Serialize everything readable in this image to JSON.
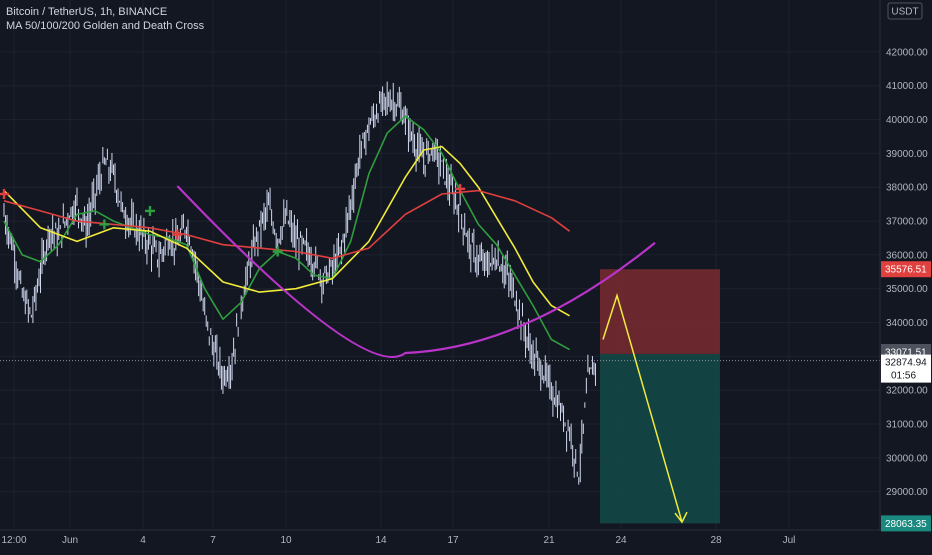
{
  "header": {
    "symbol_line": "Bitcoin / TetherUS, 1h, BINANCE",
    "indicator_line": "MA 50/100/200 Golden and Death Cross"
  },
  "price_axis": {
    "currency": "USDT",
    "ticks": [
      "42000.00",
      "41000.00",
      "40000.00",
      "39000.00",
      "38000.00",
      "37000.00",
      "36000.00",
      "35000.00",
      "34000.00",
      "33000.00",
      "32000.00",
      "31000.00",
      "30000.00",
      "29000.00"
    ]
  },
  "time_axis": {
    "ticks": [
      "12:00",
      "Jun",
      "4",
      "7",
      "10",
      "14",
      "17",
      "21",
      "24",
      "28",
      "Jul"
    ]
  },
  "badges": {
    "stop_price": "35576.51",
    "entry_price": "33071.51",
    "last_price": "32874.94",
    "countdown": "01:56",
    "target_price": "28063.35"
  },
  "colors": {
    "background": "#131722",
    "candles": "#d0d8ee",
    "ma_fast": "#2e9e3e",
    "ma_mid": "#f0ea3a",
    "ma_slow": "#e0403e",
    "arc": "#b834c8",
    "stop_zone": "#7a2a30",
    "target_zone": "#134a46",
    "arrow": "#f0ea3a"
  },
  "chart_data": {
    "type": "line",
    "title": "Bitcoin / TetherUS, 1h, BINANCE",
    "ylim": [
      28000,
      42500
    ],
    "x_ticks": [
      "12:00",
      "Jun",
      "4",
      "7",
      "10",
      "14",
      "17",
      "21",
      "24",
      "28",
      "Jul"
    ],
    "series": [
      {
        "name": "price",
        "points": [
          [
            0,
            37200
          ],
          [
            1,
            36200
          ],
          [
            2,
            34800
          ],
          [
            3,
            34200
          ],
          [
            4,
            35500
          ],
          [
            5,
            36800
          ],
          [
            6,
            36500
          ],
          [
            7,
            37200
          ],
          [
            8,
            37500
          ],
          [
            9,
            36800
          ],
          [
            10,
            37800
          ],
          [
            11,
            38700
          ],
          [
            12,
            38400
          ],
          [
            13,
            37300
          ],
          [
            14,
            36900
          ],
          [
            15,
            36600
          ],
          [
            16,
            36300
          ],
          [
            17,
            35900
          ],
          [
            18,
            36500
          ],
          [
            19,
            36300
          ],
          [
            20,
            36900
          ],
          [
            21,
            35800
          ],
          [
            22,
            34200
          ],
          [
            23,
            33200
          ],
          [
            24,
            32400
          ],
          [
            25,
            32800
          ],
          [
            26,
            34600
          ],
          [
            27,
            35800
          ],
          [
            28,
            36800
          ],
          [
            29,
            37400
          ],
          [
            30,
            36500
          ],
          [
            31,
            37100
          ],
          [
            32,
            36400
          ],
          [
            33,
            36200
          ],
          [
            34,
            35800
          ],
          [
            35,
            35300
          ],
          [
            36,
            35600
          ],
          [
            37,
            36200
          ],
          [
            38,
            37500
          ],
          [
            39,
            39000
          ],
          [
            40,
            39800
          ],
          [
            41,
            40300
          ],
          [
            42,
            40600
          ],
          [
            43,
            40500
          ],
          [
            44,
            40000
          ],
          [
            45,
            39300
          ],
          [
            46,
            38800
          ],
          [
            47,
            39200
          ],
          [
            48,
            38600
          ],
          [
            49,
            37900
          ],
          [
            50,
            37300
          ],
          [
            51,
            36300
          ],
          [
            52,
            35800
          ],
          [
            53,
            35700
          ],
          [
            54,
            35900
          ],
          [
            55,
            35500
          ],
          [
            56,
            34800
          ],
          [
            57,
            33800
          ],
          [
            58,
            33000
          ],
          [
            59,
            32600
          ],
          [
            60,
            32000
          ],
          [
            61,
            31400
          ],
          [
            62,
            30800
          ],
          [
            63,
            29500
          ],
          [
            64,
            32300
          ],
          [
            65,
            32900
          ]
        ]
      },
      {
        "name": "MA 50",
        "points": [
          [
            0,
            37000
          ],
          [
            2,
            36000
          ],
          [
            4,
            35800
          ],
          [
            6,
            36300
          ],
          [
            8,
            37200
          ],
          [
            10,
            37300
          ],
          [
            12,
            37000
          ],
          [
            14,
            36800
          ],
          [
            16,
            36600
          ],
          [
            18,
            36500
          ],
          [
            20,
            36300
          ],
          [
            22,
            35000
          ],
          [
            24,
            34100
          ],
          [
            26,
            34600
          ],
          [
            28,
            35600
          ],
          [
            30,
            36100
          ],
          [
            32,
            35900
          ],
          [
            34,
            35400
          ],
          [
            36,
            35300
          ],
          [
            38,
            36400
          ],
          [
            40,
            38400
          ],
          [
            42,
            39600
          ],
          [
            44,
            40100
          ],
          [
            46,
            39700
          ],
          [
            48,
            39000
          ],
          [
            50,
            37900
          ],
          [
            52,
            36900
          ],
          [
            54,
            36300
          ],
          [
            56,
            35400
          ],
          [
            58,
            34500
          ],
          [
            60,
            33500
          ],
          [
            62,
            33200
          ]
        ]
      },
      {
        "name": "MA 100",
        "points": [
          [
            0,
            37900
          ],
          [
            4,
            36800
          ],
          [
            8,
            36400
          ],
          [
            12,
            36800
          ],
          [
            16,
            36700
          ],
          [
            20,
            36200
          ],
          [
            24,
            35200
          ],
          [
            28,
            34900
          ],
          [
            32,
            35000
          ],
          [
            36,
            35300
          ],
          [
            40,
            36400
          ],
          [
            44,
            38300
          ],
          [
            46,
            39100
          ],
          [
            48,
            39200
          ],
          [
            50,
            38700
          ],
          [
            52,
            38000
          ],
          [
            54,
            37100
          ],
          [
            56,
            36200
          ],
          [
            58,
            35200
          ],
          [
            60,
            34500
          ],
          [
            62,
            34200
          ]
        ]
      },
      {
        "name": "MA 200",
        "points": [
          [
            0,
            37600
          ],
          [
            4,
            37300
          ],
          [
            8,
            37000
          ],
          [
            12,
            36900
          ],
          [
            16,
            36800
          ],
          [
            20,
            36600
          ],
          [
            24,
            36300
          ],
          [
            28,
            36200
          ],
          [
            32,
            36100
          ],
          [
            36,
            35900
          ],
          [
            40,
            36200
          ],
          [
            44,
            37200
          ],
          [
            48,
            37800
          ],
          [
            52,
            37900
          ],
          [
            56,
            37600
          ],
          [
            60,
            37100
          ],
          [
            62,
            36700
          ]
        ]
      }
    ],
    "annotations": {
      "cup_arc": {
        "left_x": 19,
        "bottom_x": 44,
        "right_x": 64,
        "left_y": 36500,
        "bottom_y": 33100,
        "right_y": 36300
      },
      "position": {
        "entry": 33071.51,
        "stop": 35576.51,
        "target": 28063.35
      },
      "projection_arrow": [
        [
          60,
          33500
        ],
        [
          62,
          34800
        ],
        [
          67,
          28100
        ]
      ],
      "cross_markers": [
        {
          "x": 0,
          "y": 37800,
          "kind": "death"
        },
        {
          "x": 11,
          "y": 36900,
          "kind": "golden"
        },
        {
          "x": 16,
          "y": 37300,
          "kind": "golden"
        },
        {
          "x": 19,
          "y": 36600,
          "kind": "death"
        },
        {
          "x": 30,
          "y": 36100,
          "kind": "golden"
        },
        {
          "x": 50,
          "y": 37950,
          "kind": "death"
        }
      ]
    }
  }
}
